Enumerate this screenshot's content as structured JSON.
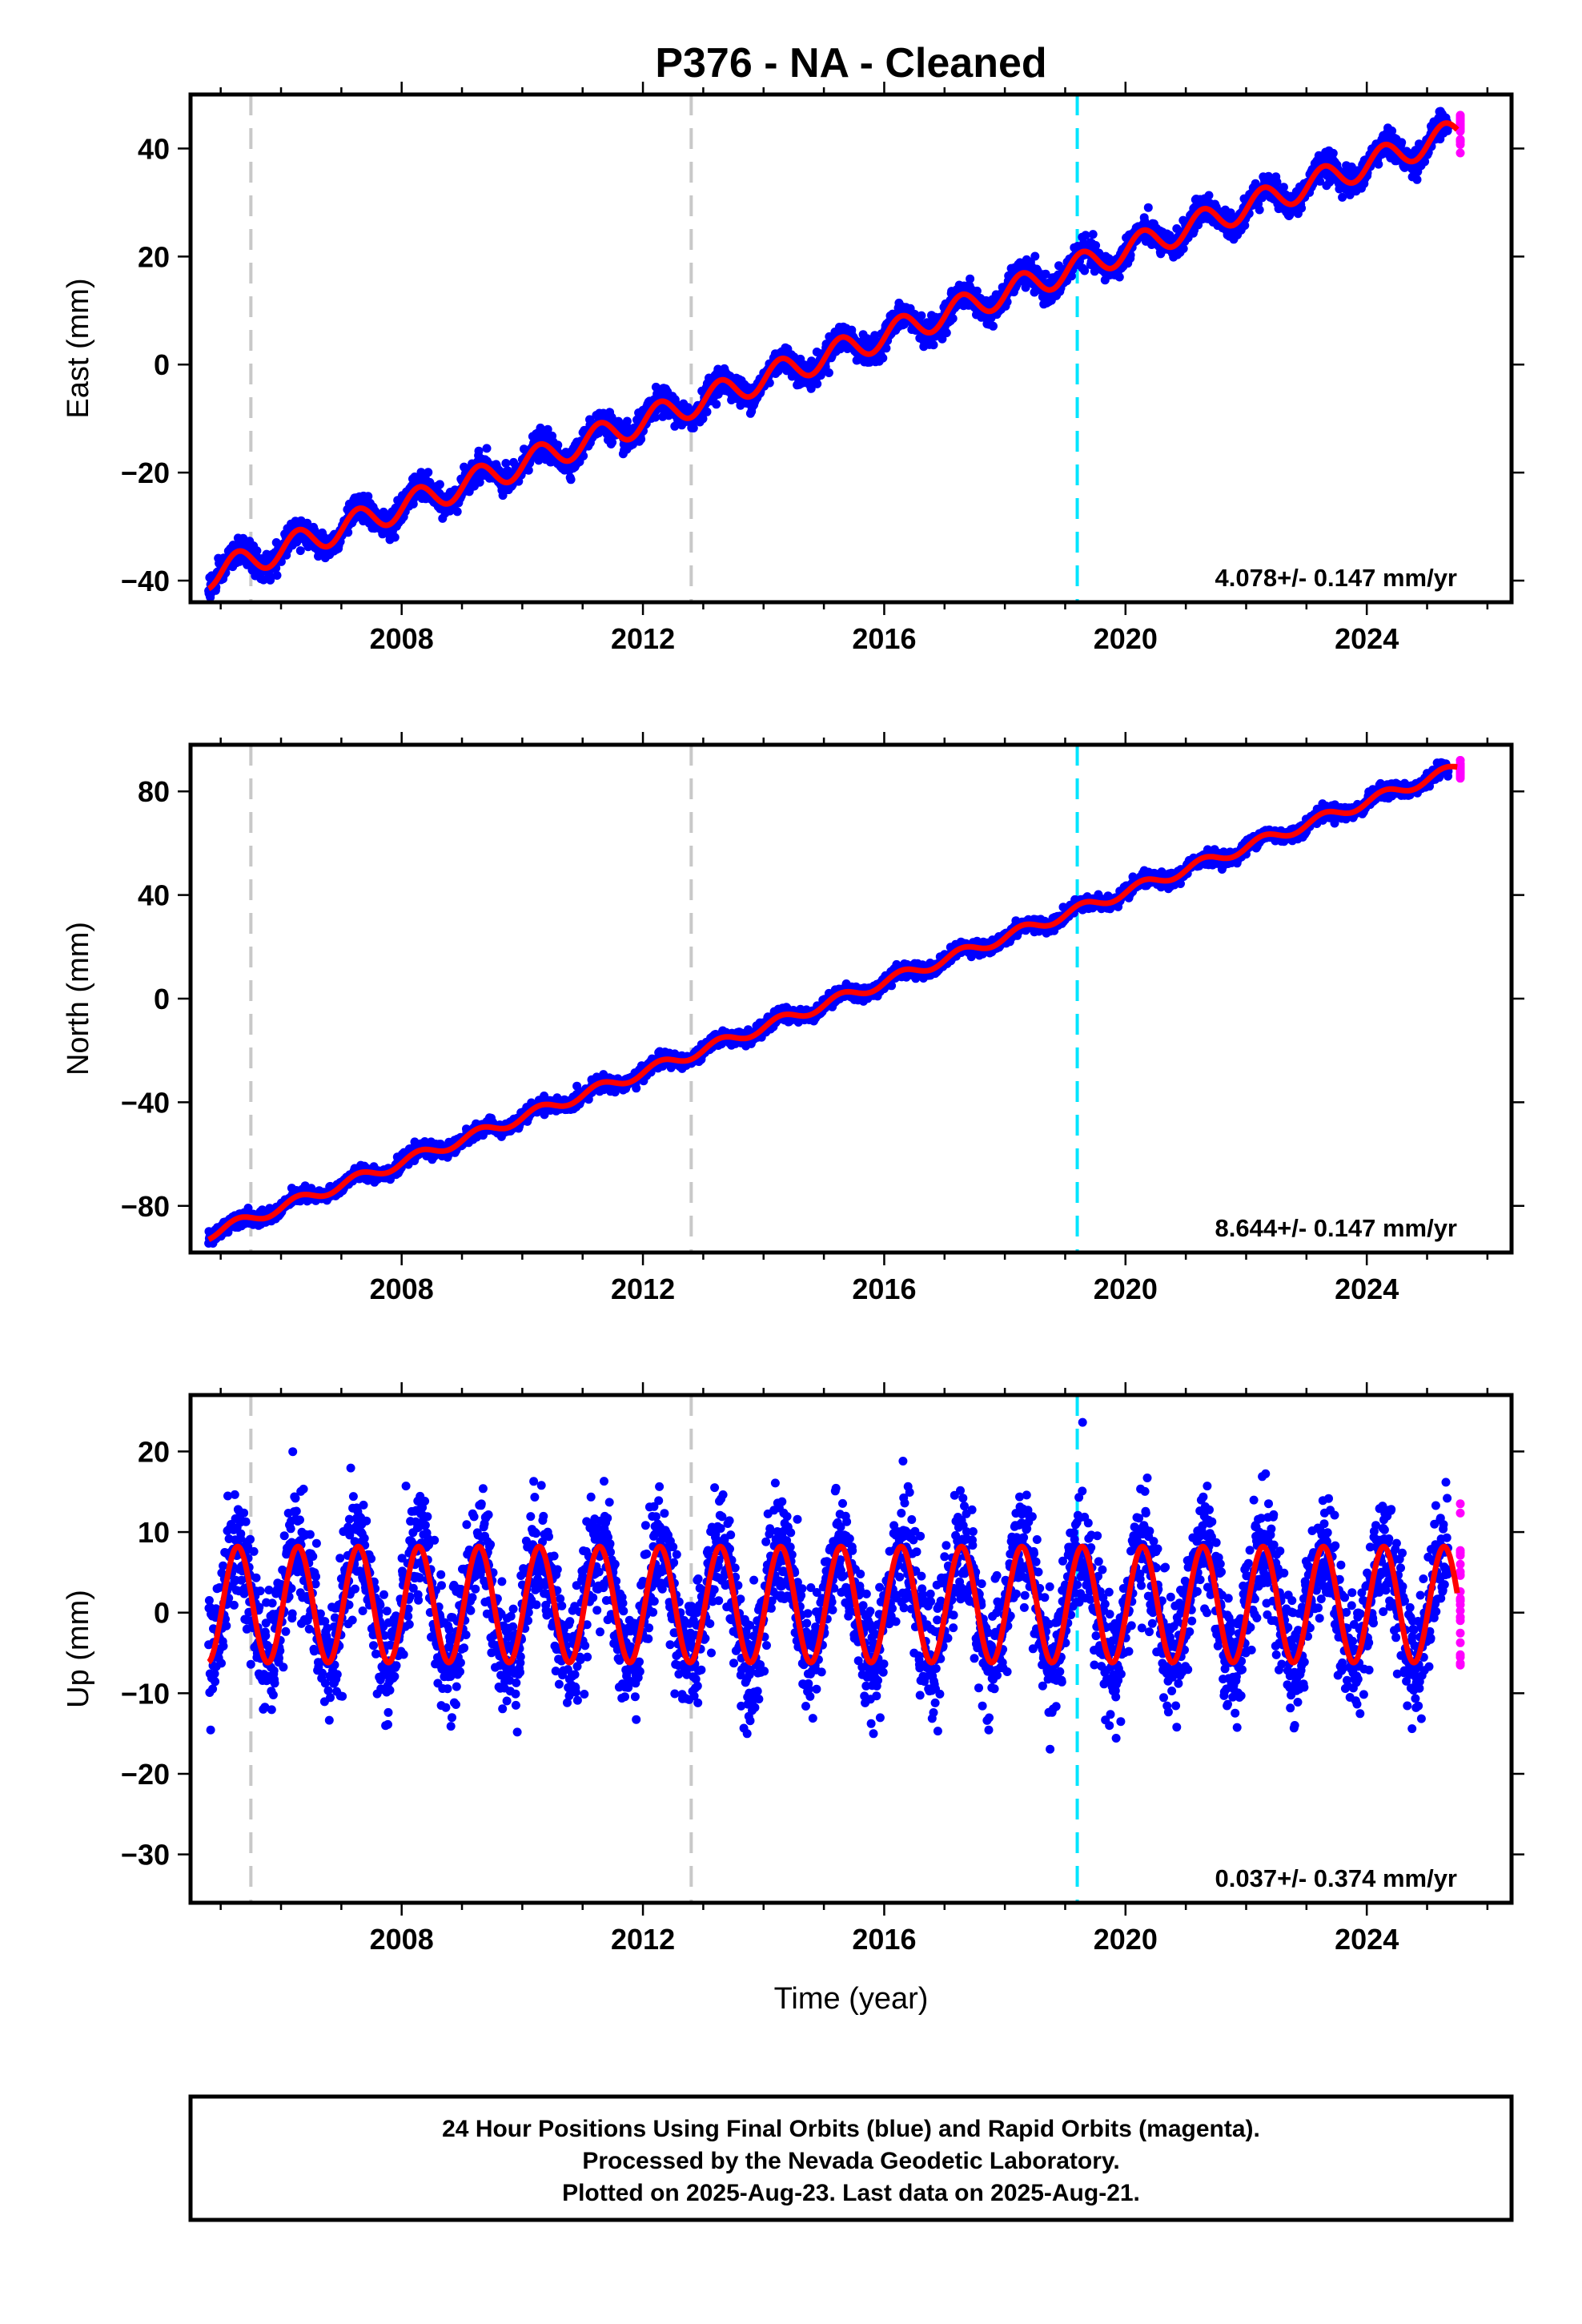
{
  "chart_data": [
    {
      "type": "scatter",
      "title": "P376  - NA - Cleaned",
      "ylabel": "East (mm)",
      "xlim": [
        2004.5,
        2026.4
      ],
      "ylim": [
        -44,
        50
      ],
      "yticks": [
        -40,
        -20,
        0,
        20,
        40
      ],
      "xticks": [
        2008,
        2012,
        2016,
        2020,
        2024
      ],
      "grid": false,
      "rate_label": "4.078+/- 0.147 mm/yr",
      "rate": 4.078,
      "trend": {
        "start": [
          2004.8,
          -39
        ],
        "end": [
          2025.5,
          43
        ]
      },
      "seasonal_amplitude": 2.5,
      "noise_sd": 1.2,
      "series": [
        {
          "name": "Final Orbits (blue)",
          "color": "#0000ff",
          "x_range": [
            2004.8,
            2025.35
          ]
        },
        {
          "name": "Rapid Orbits (magenta)",
          "color": "#ff00ff",
          "x_range": [
            2025.38,
            2025.64
          ]
        },
        {
          "name": "Model fit",
          "color": "#ff0000"
        }
      ],
      "vlines": [
        {
          "x": 2005.5,
          "color": "#c8c8c8"
        },
        {
          "x": 2012.8,
          "color": "#c8c8c8"
        },
        {
          "x": 2019.2,
          "color": "#00e5ff"
        }
      ]
    },
    {
      "type": "scatter",
      "ylabel": "North (mm)",
      "xlim": [
        2004.5,
        2026.4
      ],
      "ylim": [
        -98,
        98
      ],
      "yticks": [
        -80,
        -40,
        0,
        40,
        80
      ],
      "xticks": [
        2008,
        2012,
        2016,
        2020,
        2024
      ],
      "grid": false,
      "rate_label": "8.644+/- 0.147 mm/yr",
      "rate": 8.644,
      "trend": {
        "start": [
          2004.8,
          -91
        ],
        "end": [
          2025.5,
          89
        ]
      },
      "seasonal_amplitude": 2.0,
      "noise_sd": 1.3,
      "series": [
        {
          "name": "Final Orbits (blue)",
          "color": "#0000ff",
          "x_range": [
            2004.8,
            2025.35
          ]
        },
        {
          "name": "Rapid Orbits (magenta)",
          "color": "#ff00ff",
          "x_range": [
            2025.38,
            2025.64
          ]
        },
        {
          "name": "Model fit",
          "color": "#ff0000"
        }
      ],
      "vlines": [
        {
          "x": 2005.5,
          "color": "#c8c8c8"
        },
        {
          "x": 2012.8,
          "color": "#c8c8c8"
        },
        {
          "x": 2019.2,
          "color": "#00e5ff"
        }
      ]
    },
    {
      "type": "scatter",
      "ylabel": "Up (mm)",
      "xlabel": "Time (year)",
      "xlim": [
        2004.5,
        2026.4
      ],
      "ylim": [
        -36,
        27
      ],
      "yticks": [
        -30,
        -20,
        -10,
        0,
        10,
        20
      ],
      "xticks": [
        2008,
        2012,
        2016,
        2020,
        2024
      ],
      "grid": false,
      "rate_label": "0.037+/- 0.374 mm/yr",
      "rate": 0.037,
      "trend": {
        "start": [
          2004.8,
          1
        ],
        "end": [
          2025.5,
          1
        ]
      },
      "seasonal_amplitude": 7.2,
      "noise_sd": 3.6,
      "series": [
        {
          "name": "Final Orbits (blue)",
          "color": "#0000ff",
          "x_range": [
            2004.8,
            2025.35
          ]
        },
        {
          "name": "Rapid Orbits (magenta)",
          "color": "#ff00ff",
          "x_range": [
            2025.38,
            2025.64
          ]
        },
        {
          "name": "Model fit",
          "color": "#ff0000"
        }
      ],
      "vlines": [
        {
          "x": 2005.5,
          "color": "#c8c8c8"
        },
        {
          "x": 2012.8,
          "color": "#c8c8c8"
        },
        {
          "x": 2019.2,
          "color": "#00e5ff"
        }
      ]
    }
  ],
  "footer": {
    "line1": "24 Hour Positions Using Final Orbits (blue) and Rapid Orbits (magenta).",
    "line2": "Processed by the Nevada Geodetic Laboratory.",
    "line3": "Plotted on 2025-Aug-23. Last data on 2025-Aug-21."
  }
}
